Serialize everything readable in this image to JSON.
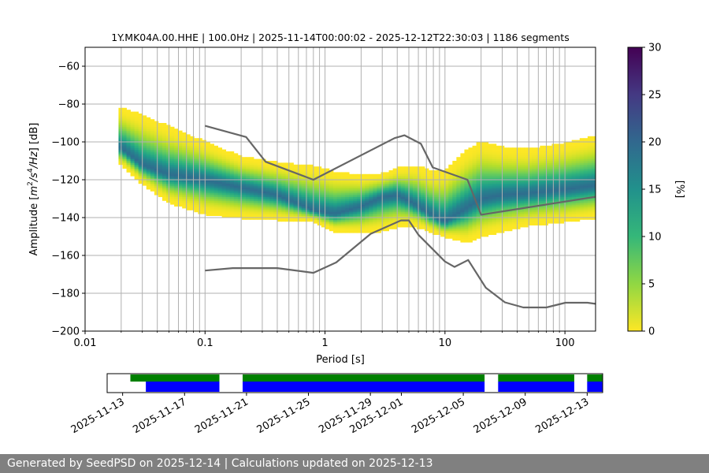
{
  "chart_data": [
    {
      "type": "heatmap",
      "title": "1Y.MK04A.00.HHE | 100.0Hz | 2025-11-14T00:00:02 - 2025-12-12T22:30:03 | 1186 segments",
      "xlabel": "Period [s]",
      "ylabel_parts": [
        "Amplitude [",
        "m",
        "2",
        "/",
        "s",
        "4",
        "/",
        "Hz",
        "] [dB]"
      ],
      "xscale": "log",
      "xlim": [
        0.01,
        180
      ],
      "ylim": [
        -200,
        -50
      ],
      "x_ticks": [
        {
          "value": 0.01,
          "label": "0.01"
        },
        {
          "value": 0.1,
          "label": "0.1"
        },
        {
          "value": 1,
          "label": "1"
        },
        {
          "value": 10,
          "label": "10"
        },
        {
          "value": 100,
          "label": "100"
        }
      ],
      "y_ticks": [
        {
          "value": -60,
          "label": "−60"
        },
        {
          "value": -80,
          "label": "−80"
        },
        {
          "value": -100,
          "label": "−100"
        },
        {
          "value": -120,
          "label": "−120"
        },
        {
          "value": -140,
          "label": "−140"
        },
        {
          "value": -160,
          "label": "−160"
        },
        {
          "value": -180,
          "label": "−180"
        },
        {
          "value": -200,
          "label": "−200"
        }
      ],
      "grid": true,
      "colormap": "viridis_r",
      "colorbar": {
        "label": "[%]",
        "range": [
          0,
          30
        ],
        "ticks": [
          {
            "value": 0,
            "label": "0"
          },
          {
            "value": 5,
            "label": "5"
          },
          {
            "value": 10,
            "label": "10"
          },
          {
            "value": 15,
            "label": "15"
          },
          {
            "value": 20,
            "label": "20"
          },
          {
            "value": 25,
            "label": "25"
          },
          {
            "value": 30,
            "label": "30"
          }
        ]
      },
      "psd_band": {
        "period": [
          0.02,
          0.03,
          0.05,
          0.1,
          0.2,
          0.4,
          0.8,
          1.2,
          2,
          3,
          4,
          5,
          6,
          8,
          10,
          15,
          20,
          30,
          50,
          100,
          180
        ],
        "mode": [
          -103,
          -112,
          -117,
          -120,
          -124,
          -128,
          -136,
          -138,
          -134,
          -129,
          -128,
          -131,
          -134,
          -139,
          -142,
          -135,
          -130,
          -128,
          -127,
          -125,
          -123
        ],
        "upper": [
          -82,
          -86,
          -92,
          -100,
          -108,
          -111,
          -113,
          -116,
          -118,
          -117,
          -114,
          -113,
          -113,
          -116,
          -115,
          -105,
          -100,
          -103,
          -104,
          -101,
          -97
        ],
        "lower": [
          -112,
          -122,
          -132,
          -138,
          -140,
          -141,
          -142,
          -147,
          -148,
          -147,
          -145,
          -144,
          -145,
          -148,
          -150,
          -153,
          -150,
          -147,
          -144,
          -142,
          -140
        ]
      },
      "series": [
        {
          "x": [
            0.1,
            0.22,
            0.32,
            0.8,
            3.8,
            4.6,
            6.3,
            7.9,
            15.4,
            20,
            180
          ],
          "y": [
            -91.5,
            -97.4,
            -110.5,
            -120,
            -98,
            -96.5,
            -101,
            -113.5,
            -120,
            -138.5,
            -129
          ]
        },
        {
          "x": [
            0.1,
            0.17,
            0.4,
            0.8,
            1.24,
            2.4,
            4.3,
            5,
            6,
            10,
            12,
            15.6,
            21.9,
            31.6,
            45,
            70,
            101,
            154,
            180
          ],
          "y": [
            -168,
            -166.7,
            -166.7,
            -169.2,
            -163.7,
            -148.6,
            -141.5,
            -141.5,
            -149.1,
            -163.2,
            -166.1,
            -162.4,
            -177.1,
            -184.8,
            -187.5,
            -187.5,
            -185,
            -185,
            -185.6
          ]
        }
      ]
    },
    {
      "type": "timeline",
      "date_range": [
        "2025-11-12",
        "2025-12-14"
      ],
      "date_ticks": [
        {
          "value": "2025-11-13",
          "label": "2025-11-13"
        },
        {
          "value": "2025-11-17",
          "label": "2025-11-17"
        },
        {
          "value": "2025-11-21",
          "label": "2025-11-21"
        },
        {
          "value": "2025-11-25",
          "label": "2025-11-25"
        },
        {
          "value": "2025-11-29",
          "label": "2025-11-29"
        },
        {
          "value": "2025-12-01",
          "label": "2025-12-01"
        },
        {
          "value": "2025-12-05",
          "label": "2025-12-05"
        },
        {
          "value": "2025-12-09",
          "label": "2025-12-09"
        },
        {
          "value": "2025-12-13",
          "label": "2025-12-13"
        }
      ],
      "data_segments": [
        [
          "2025-11-13T12:00",
          "2025-11-19T06:00"
        ],
        [
          "2025-11-20T18:00",
          "2025-12-06T09:00"
        ],
        [
          "2025-12-07T06:00",
          "2025-12-12T04:00"
        ],
        [
          "2025-12-13T00:00",
          "2025-12-14T00:00"
        ]
      ],
      "used_segments": [
        [
          "2025-11-14T12:00",
          "2025-11-19T06:00"
        ],
        [
          "2025-11-20T18:00",
          "2025-12-06T09:00"
        ],
        [
          "2025-12-07T06:00",
          "2025-12-12T04:00"
        ],
        [
          "2025-12-13T00:00",
          "2025-12-14T00:00"
        ]
      ],
      "colors": {
        "data": "#008000",
        "used": "#0000ff"
      }
    }
  ],
  "footer": {
    "text": "Generated by SeedPSD on 2025-12-14 | Calculations updated on 2025-12-13"
  }
}
